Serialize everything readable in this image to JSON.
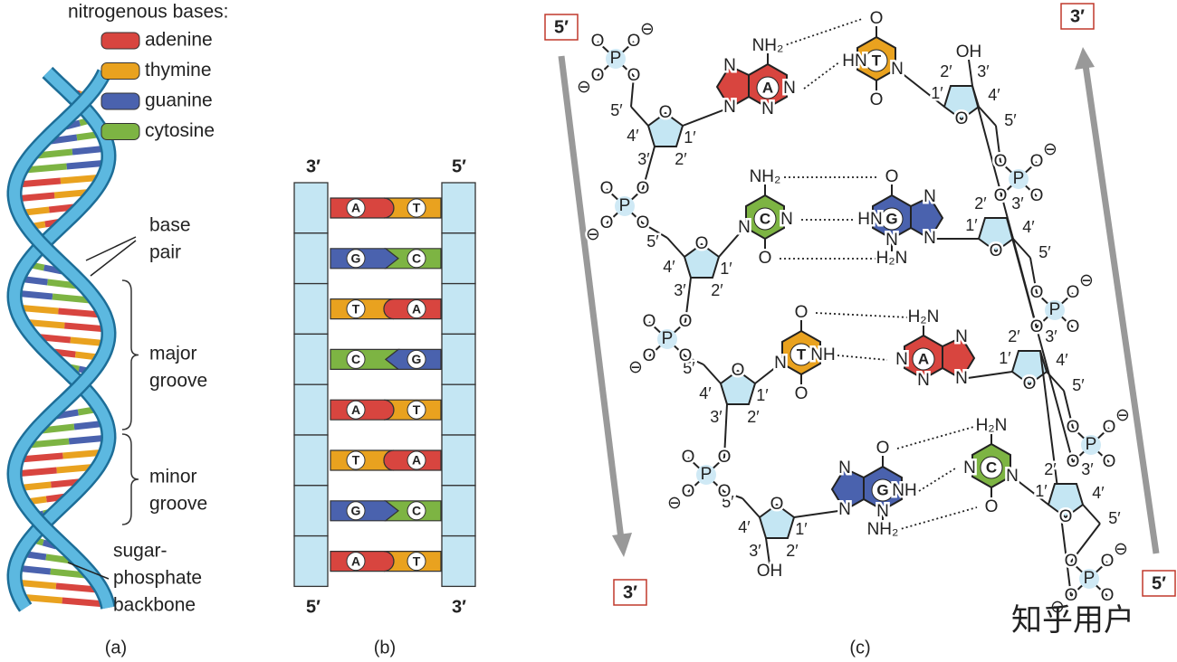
{
  "legend": {
    "title": "nitrogenous bases:",
    "items": [
      {
        "name": "adenine",
        "color": "#d8453f"
      },
      {
        "name": "thymine",
        "color": "#e9a21f"
      },
      {
        "name": "guanine",
        "color": "#4a62ae"
      },
      {
        "name": "cytosine",
        "color": "#7db443"
      }
    ]
  },
  "base_colors": {
    "A": "#d8453f",
    "T": "#e9a21f",
    "G": "#4a62ae",
    "C": "#7db443"
  },
  "panel_a": {
    "labels": [
      [
        "base",
        "pair"
      ],
      [
        "major",
        "groove"
      ],
      [
        "minor",
        "groove"
      ],
      [
        "sugar-",
        "phosphate",
        "backbone"
      ]
    ],
    "caption": "(a)"
  },
  "panel_b": {
    "ends": [
      "3′",
      "5′",
      "5′",
      "3′"
    ],
    "pairs": [
      [
        "A",
        "T"
      ],
      [
        "G",
        "C"
      ],
      [
        "T",
        "A"
      ],
      [
        "C",
        "G"
      ],
      [
        "A",
        "T"
      ],
      [
        "T",
        "A"
      ],
      [
        "G",
        "C"
      ],
      [
        "A",
        "T"
      ]
    ],
    "caption": "(b)"
  },
  "panel_c": {
    "ends": [
      "5′",
      "3′",
      "3′",
      "5′"
    ],
    "caption": "(c)",
    "rows": [
      {
        "left": {
          "base": "A",
          "atoms": [
            "NH₂",
            "N",
            "N",
            "N",
            "N"
          ]
        },
        "right": {
          "base": "T",
          "atoms": [
            "O",
            "HN",
            "O",
            "N"
          ]
        },
        "left_sugar": [
          "O",
          "1′",
          "2′",
          "3′",
          "4′",
          "5′"
        ],
        "right_sugar": [
          "O",
          "1′",
          "2′",
          "3′",
          "4′",
          "5′",
          "OH"
        ],
        "left_phosphate": [
          "P",
          "O",
          "O",
          "O",
          "O",
          "⊖",
          "⊖"
        ],
        "right_phosphate": [
          "P",
          "O",
          "O",
          "O",
          "O",
          "⊖"
        ]
      },
      {
        "left": {
          "base": "C",
          "atoms": [
            "NH₂",
            "N",
            "O",
            "N"
          ]
        },
        "right": {
          "base": "G",
          "atoms": [
            "O",
            "HN",
            "H₂N",
            "N",
            "N",
            "N"
          ]
        },
        "left_sugar": [
          "O",
          "1′",
          "2′",
          "3′",
          "4′",
          "5′"
        ],
        "right_sugar": [
          "O",
          "1′",
          "2′",
          "3′",
          "4′",
          "5′"
        ],
        "left_phosphate": [
          "P",
          "O",
          "O",
          "O",
          "O",
          "⊖"
        ],
        "right_phosphate": [
          "P",
          "O",
          "O",
          "O",
          "O",
          "⊖"
        ]
      },
      {
        "left": {
          "base": "T",
          "atoms": [
            "O",
            "NH",
            "O",
            "N"
          ]
        },
        "right": {
          "base": "A",
          "atoms": [
            "H₂N",
            "N",
            "N",
            "N",
            "N"
          ]
        },
        "left_sugar": [
          "O",
          "1′",
          "2′",
          "3′",
          "4′",
          "5′"
        ],
        "right_sugar": [
          "O",
          "1′",
          "2′",
          "3′",
          "4′",
          "5′"
        ],
        "left_phosphate": [
          "P",
          "O",
          "O",
          "O",
          "O",
          "⊖"
        ],
        "right_phosphate": [
          "P",
          "O",
          "O",
          "O",
          "O",
          "⊖"
        ]
      },
      {
        "left": {
          "base": "G",
          "atoms": [
            "O",
            "NH",
            "NH₂",
            "N",
            "N",
            "N"
          ]
        },
        "right": {
          "base": "C",
          "atoms": [
            "H₂N",
            "N",
            "O",
            "N"
          ]
        },
        "left_sugar": [
          "O",
          "1′",
          "2′",
          "3′",
          "4′",
          "5′",
          "OH"
        ],
        "right_sugar": [
          "O",
          "1′",
          "2′",
          "3′",
          "4′",
          "5′"
        ],
        "left_phosphate": [
          "P",
          "O",
          "O",
          "O",
          "O",
          "⊖"
        ],
        "right_phosphate": [
          "P",
          "O",
          "O",
          "O",
          "O",
          "⊖",
          "⊖"
        ]
      }
    ]
  },
  "watermark": "知乎用户"
}
